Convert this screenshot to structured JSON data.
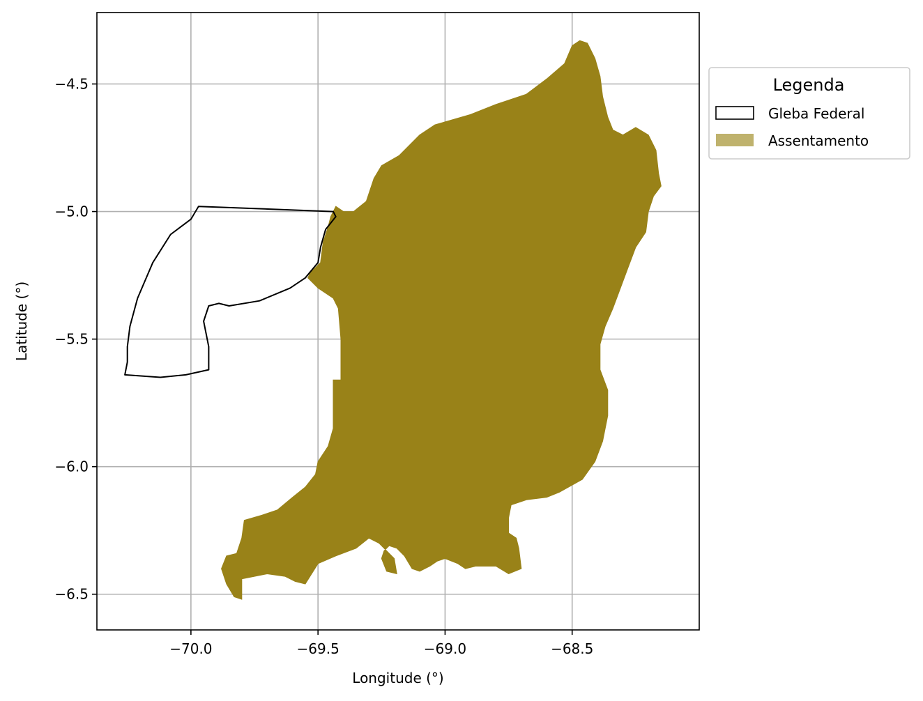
{
  "chart_data": {
    "type": "map",
    "xlabel": "Longitude (°)",
    "ylabel": "Latitude (°)",
    "xlim": [
      -70.37,
      -68.0
    ],
    "ylim": [
      -6.64,
      -4.22
    ],
    "xticks": [
      -70.0,
      -69.5,
      -69.0,
      -68.5
    ],
    "xtick_labels": [
      "−70.0",
      "−69.5",
      "−69.0",
      "−68.5"
    ],
    "yticks": [
      -4.5,
      -5.0,
      -5.5,
      -6.0,
      -6.5
    ],
    "ytick_labels": [
      "−4.5",
      "−5.0",
      "−5.5",
      "−6.0",
      "−6.5"
    ],
    "grid": true,
    "legend": {
      "title": "Legenda",
      "placement": "upper right, outside axes",
      "entries": [
        {
          "label": "Gleba Federal",
          "style": "outline",
          "color": "#000000"
        },
        {
          "label": "Assentamento",
          "style": "fill",
          "color": "#bfb26d"
        }
      ]
    },
    "layers": [
      {
        "name": "Gleba Federal",
        "style": "outline",
        "edgecolor": "#000000",
        "coordinates": [
          [
            -69.97,
            -4.98
          ],
          [
            -69.44,
            -5.0
          ],
          [
            -69.43,
            -5.02
          ],
          [
            -69.47,
            -5.07
          ],
          [
            -69.49,
            -5.14
          ],
          [
            -69.5,
            -5.2
          ],
          [
            -69.55,
            -5.26
          ],
          [
            -69.61,
            -5.3
          ],
          [
            -69.73,
            -5.35
          ],
          [
            -69.85,
            -5.37
          ],
          [
            -69.89,
            -5.36
          ],
          [
            -69.93,
            -5.37
          ],
          [
            -69.95,
            -5.43
          ],
          [
            -69.93,
            -5.53
          ],
          [
            -69.93,
            -5.62
          ],
          [
            -70.02,
            -5.64
          ],
          [
            -70.12,
            -5.65
          ],
          [
            -70.26,
            -5.64
          ],
          [
            -70.25,
            -5.59
          ],
          [
            -70.25,
            -5.53
          ],
          [
            -70.24,
            -5.45
          ],
          [
            -70.21,
            -5.34
          ],
          [
            -70.15,
            -5.2
          ],
          [
            -70.08,
            -5.09
          ],
          [
            -70.0,
            -5.03
          ],
          [
            -69.97,
            -4.98
          ]
        ]
      },
      {
        "name": "Assentamento",
        "style": "fill",
        "facecolor": "#998218",
        "coordinates": [
          [
            -69.43,
            -4.98
          ],
          [
            -69.4,
            -5.0
          ],
          [
            -69.36,
            -5.0
          ],
          [
            -69.31,
            -4.96
          ],
          [
            -69.28,
            -4.87
          ],
          [
            -69.25,
            -4.82
          ],
          [
            -69.18,
            -4.78
          ],
          [
            -69.1,
            -4.7
          ],
          [
            -69.04,
            -4.66
          ],
          [
            -68.9,
            -4.62
          ],
          [
            -68.8,
            -4.58
          ],
          [
            -68.68,
            -4.54
          ],
          [
            -68.6,
            -4.48
          ],
          [
            -68.53,
            -4.42
          ],
          [
            -68.5,
            -4.35
          ],
          [
            -68.47,
            -4.33
          ],
          [
            -68.44,
            -4.34
          ],
          [
            -68.41,
            -4.4
          ],
          [
            -68.39,
            -4.47
          ],
          [
            -68.38,
            -4.55
          ],
          [
            -68.36,
            -4.63
          ],
          [
            -68.34,
            -4.68
          ],
          [
            -68.3,
            -4.7
          ],
          [
            -68.25,
            -4.67
          ],
          [
            -68.2,
            -4.7
          ],
          [
            -68.17,
            -4.76
          ],
          [
            -68.16,
            -4.85
          ],
          [
            -68.15,
            -4.9
          ],
          [
            -68.18,
            -4.94
          ],
          [
            -68.2,
            -5.0
          ],
          [
            -68.21,
            -5.08
          ],
          [
            -68.25,
            -5.14
          ],
          [
            -68.28,
            -5.22
          ],
          [
            -68.31,
            -5.3
          ],
          [
            -68.34,
            -5.38
          ],
          [
            -68.37,
            -5.45
          ],
          [
            -68.39,
            -5.52
          ],
          [
            -68.39,
            -5.62
          ],
          [
            -68.36,
            -5.7
          ],
          [
            -68.36,
            -5.8
          ],
          [
            -68.38,
            -5.9
          ],
          [
            -68.41,
            -5.98
          ],
          [
            -68.46,
            -6.05
          ],
          [
            -68.55,
            -6.1
          ],
          [
            -68.6,
            -6.12
          ],
          [
            -68.68,
            -6.13
          ],
          [
            -68.74,
            -6.15
          ],
          [
            -68.75,
            -6.2
          ],
          [
            -68.75,
            -6.26
          ],
          [
            -68.72,
            -6.28
          ],
          [
            -68.71,
            -6.32
          ],
          [
            -68.7,
            -6.4
          ],
          [
            -68.75,
            -6.42
          ],
          [
            -68.8,
            -6.39
          ],
          [
            -68.84,
            -6.39
          ],
          [
            -68.88,
            -6.39
          ],
          [
            -68.92,
            -6.4
          ],
          [
            -68.95,
            -6.38
          ],
          [
            -69.0,
            -6.36
          ],
          [
            -69.03,
            -6.37
          ],
          [
            -69.06,
            -6.39
          ],
          [
            -69.1,
            -6.41
          ],
          [
            -69.13,
            -6.4
          ],
          [
            -69.16,
            -6.35
          ],
          [
            -69.19,
            -6.32
          ],
          [
            -69.22,
            -6.31
          ],
          [
            -69.24,
            -6.33
          ],
          [
            -69.25,
            -6.36
          ],
          [
            -69.23,
            -6.41
          ],
          [
            -69.19,
            -6.42
          ],
          [
            -69.2,
            -6.36
          ],
          [
            -69.26,
            -6.3
          ],
          [
            -69.3,
            -6.28
          ],
          [
            -69.35,
            -6.32
          ],
          [
            -69.43,
            -6.35
          ],
          [
            -69.5,
            -6.38
          ],
          [
            -69.55,
            -6.46
          ],
          [
            -69.59,
            -6.45
          ],
          [
            -69.63,
            -6.43
          ],
          [
            -69.7,
            -6.42
          ],
          [
            -69.75,
            -6.43
          ],
          [
            -69.8,
            -6.44
          ],
          [
            -69.8,
            -6.52
          ],
          [
            -69.83,
            -6.51
          ],
          [
            -69.86,
            -6.46
          ],
          [
            -69.88,
            -6.4
          ],
          [
            -69.86,
            -6.35
          ],
          [
            -69.82,
            -6.34
          ],
          [
            -69.8,
            -6.28
          ],
          [
            -69.79,
            -6.21
          ],
          [
            -69.72,
            -6.19
          ],
          [
            -69.66,
            -6.17
          ],
          [
            -69.6,
            -6.12
          ],
          [
            -69.55,
            -6.08
          ],
          [
            -69.51,
            -6.03
          ],
          [
            -69.5,
            -5.98
          ],
          [
            -69.46,
            -5.92
          ],
          [
            -69.44,
            -5.85
          ],
          [
            -69.44,
            -5.75
          ],
          [
            -69.44,
            -5.66
          ],
          [
            -69.41,
            -5.66
          ],
          [
            -69.41,
            -5.5
          ],
          [
            -69.42,
            -5.38
          ],
          [
            -69.44,
            -5.34
          ],
          [
            -69.5,
            -5.3
          ],
          [
            -69.54,
            -5.26
          ],
          [
            -69.53,
            -5.24
          ],
          [
            -69.49,
            -5.2
          ],
          [
            -69.48,
            -5.12
          ],
          [
            -69.46,
            -5.06
          ],
          [
            -69.45,
            -5.02
          ],
          [
            -69.43,
            -4.98
          ]
        ]
      }
    ]
  }
}
